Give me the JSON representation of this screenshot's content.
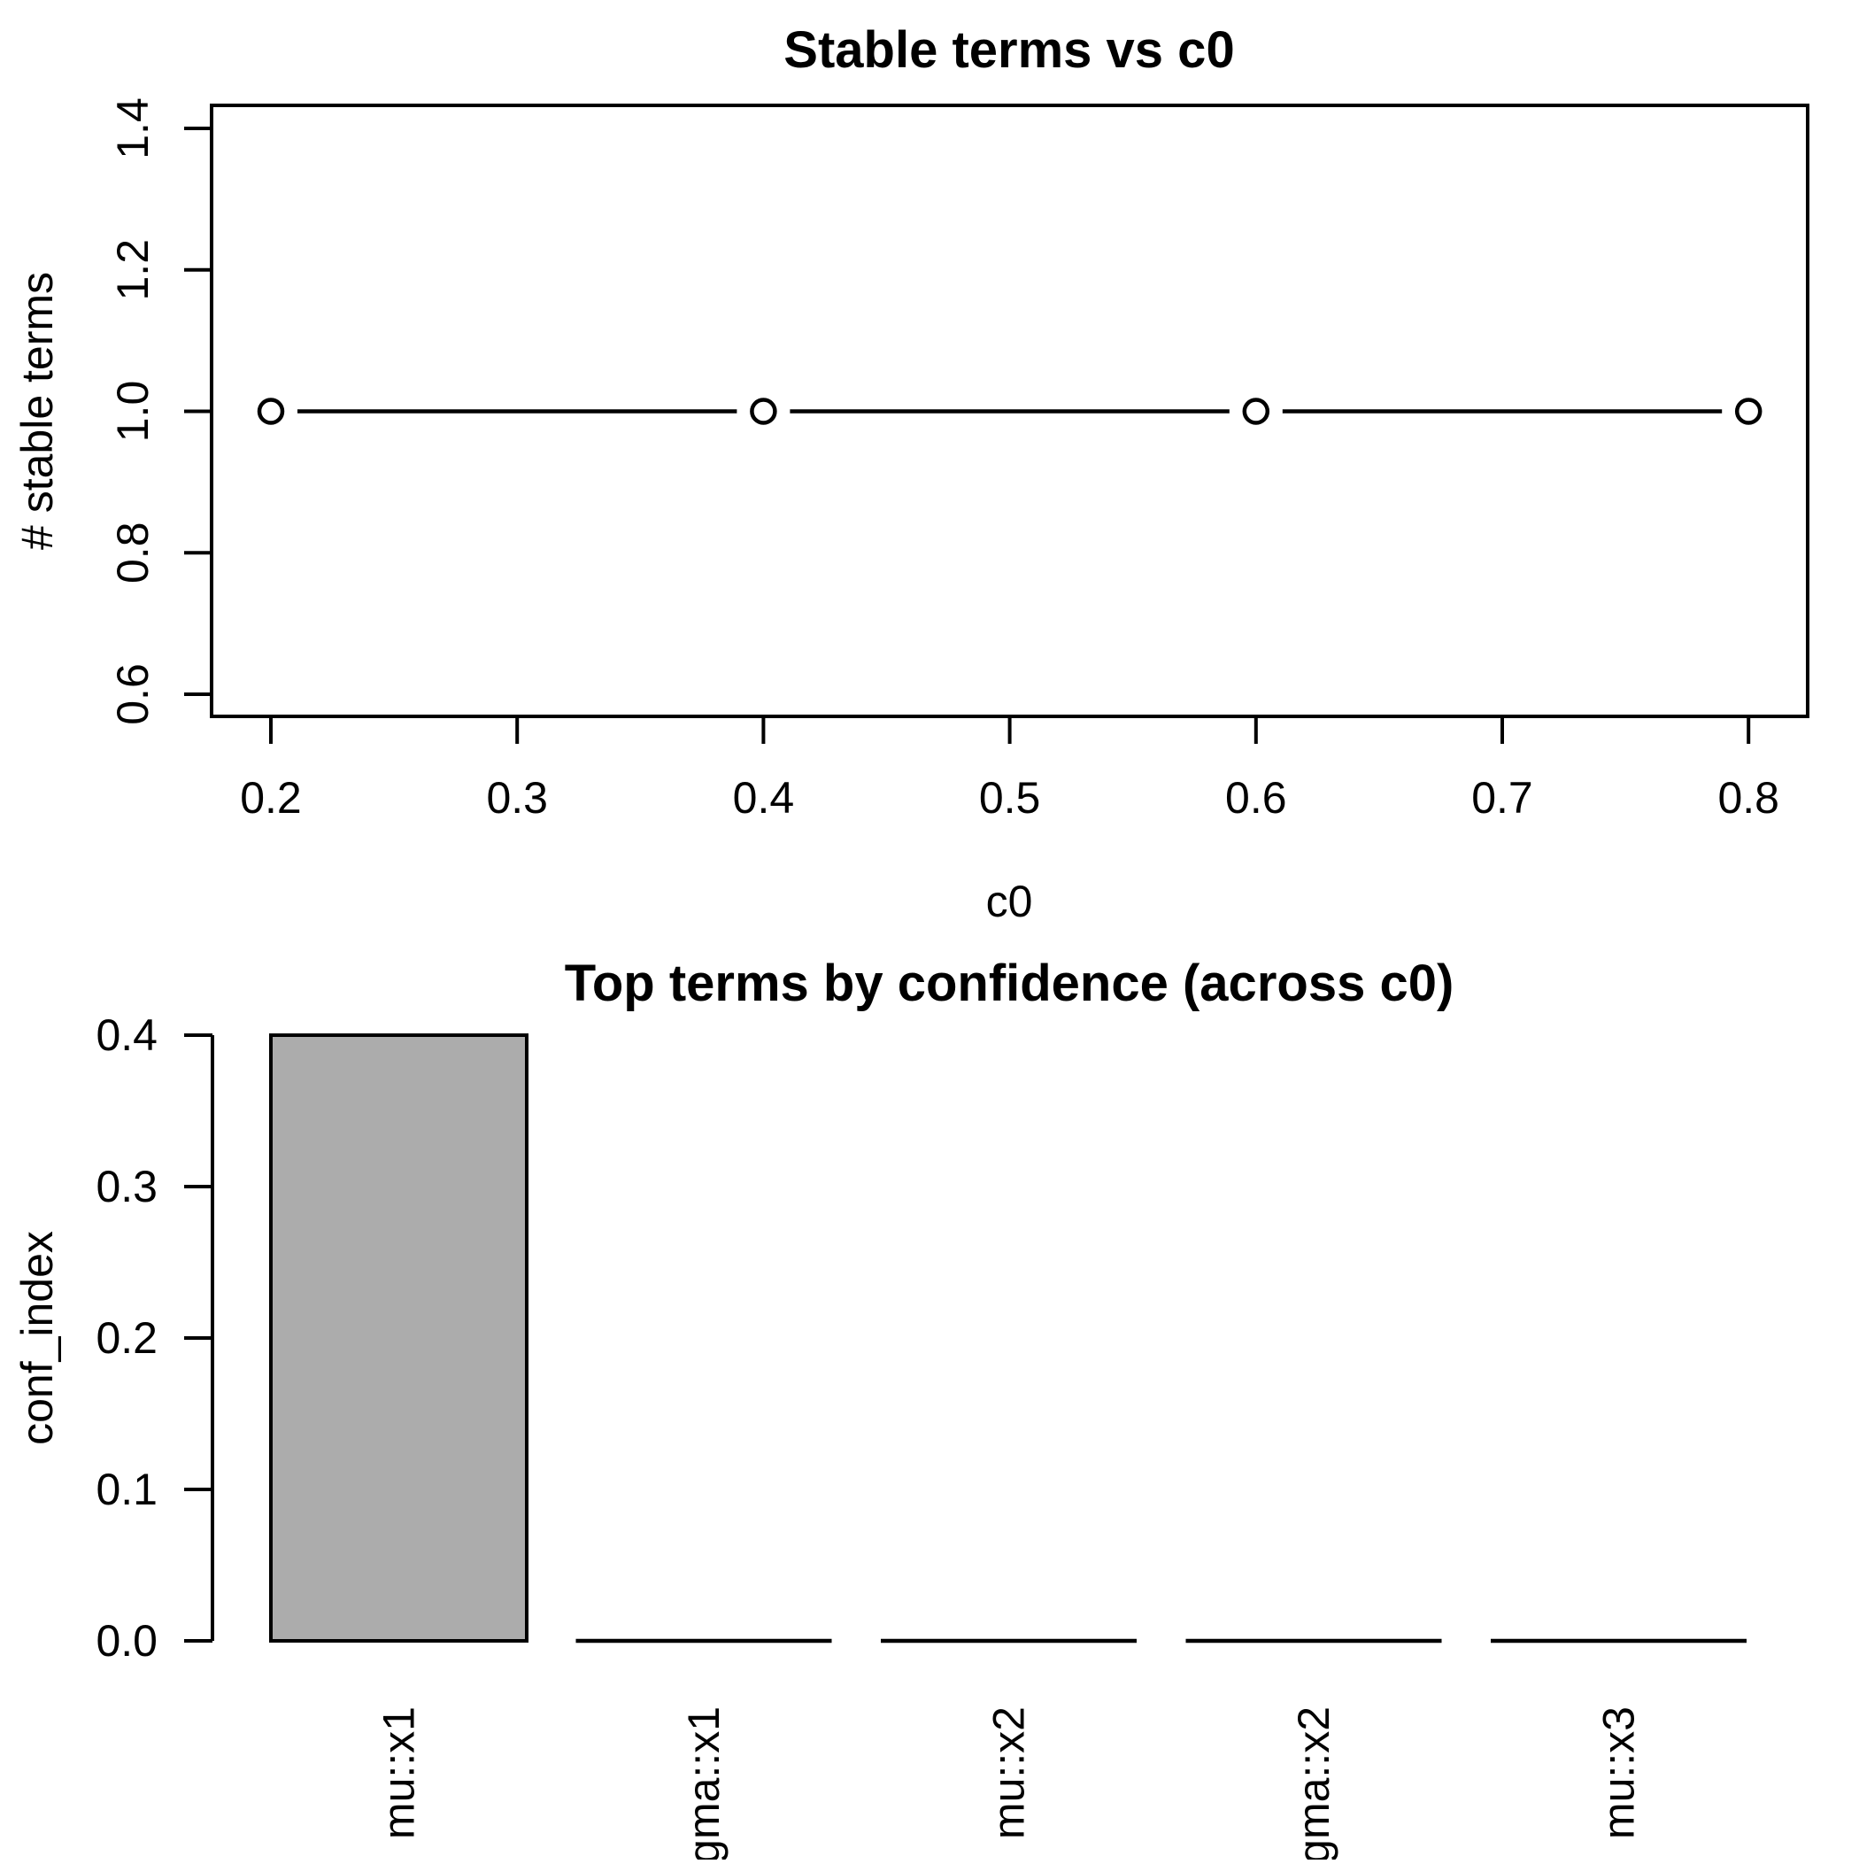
{
  "page": {
    "background": "#ffffff",
    "foreground": "#000000"
  },
  "chart_data": [
    {
      "type": "line",
      "title": "Stable terms vs c0",
      "xlabel": "c0",
      "ylabel": "# stable terms",
      "x": [
        0.2,
        0.4,
        0.6,
        0.8
      ],
      "y": [
        1.0,
        1.0,
        1.0,
        1.0
      ],
      "xtick_labels": [
        "0.2",
        "0.3",
        "0.4",
        "0.5",
        "0.6",
        "0.7",
        "0.8"
      ],
      "ytick_labels": [
        "0.6",
        "0.8",
        "1.0",
        "1.2",
        "1.4"
      ],
      "xlim": [
        0.176,
        0.824
      ],
      "ylim": [
        0.568,
        1.432
      ],
      "marker": "open-circle",
      "line_color": "#000000",
      "grid": false,
      "box": true
    },
    {
      "type": "bar",
      "title": "Top terms by confidence (across c0)",
      "xlabel": "",
      "ylabel": "conf_index",
      "categories": [
        "mu::x1",
        "gma::x1",
        "mu::x2",
        "gma::x2",
        "mu::x3"
      ],
      "values": [
        0.4,
        0,
        0,
        0,
        0
      ],
      "ytick_labels": [
        "0.0",
        "0.1",
        "0.2",
        "0.3",
        "0.4"
      ],
      "ylim": [
        0,
        0.4
      ],
      "bar_fill": "#acacac",
      "bar_border": "#000000",
      "grid": false,
      "box": false,
      "category_label_rotation": -90
    }
  ]
}
